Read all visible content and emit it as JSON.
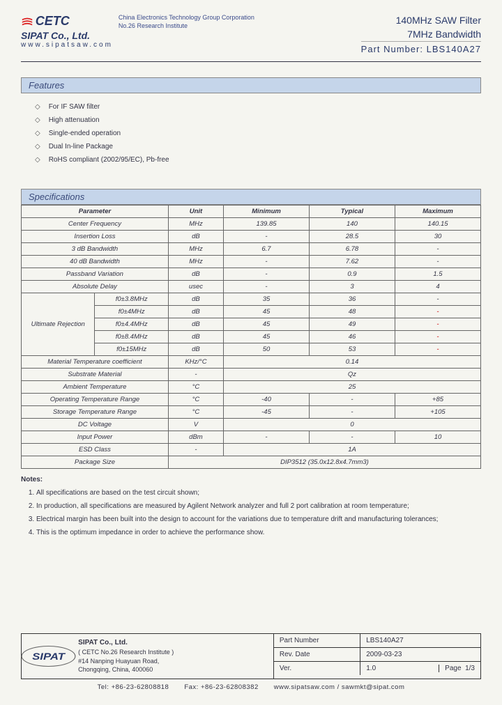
{
  "header": {
    "logo_text": "CETC",
    "subtitle_line1": "China Electronics Technology Group Corporation",
    "subtitle_line2": "No.26 Research Institute",
    "product_line1": "140MHz SAW Filter",
    "product_line2": "7MHz Bandwidth",
    "company": "SIPAT Co., Ltd.",
    "website": "www.sipatsaw.com",
    "partnum_label": "Part Number: ",
    "partnum": "LBS140A27"
  },
  "features": {
    "title": "Features",
    "items": [
      "For IF SAW filter",
      "High attenuation",
      "Single-ended operation",
      "Dual In-line Package",
      "RoHS compliant (2002/95/EC), Pb-free"
    ]
  },
  "specs": {
    "title": "Specifications",
    "columns": [
      "Parameter",
      "Unit",
      "Minimum",
      "Typical",
      "Maximum"
    ],
    "rows": [
      {
        "p": "Center Frequency",
        "u": "MHz",
        "min": "139.85",
        "typ": "140",
        "max": "140.15"
      },
      {
        "p": "Insertion Loss",
        "u": "dB",
        "min": "-",
        "typ": "28.5",
        "max": "30"
      },
      {
        "p": "3 dB Bandwidth",
        "u": "MHz",
        "min": "6.7",
        "typ": "6.78",
        "max": "-"
      },
      {
        "p": "40 dB Bandwidth",
        "u": "MHz",
        "min": "-",
        "typ": "7.62",
        "max": "-"
      },
      {
        "p": "Passband Variation",
        "u": "dB",
        "min": "-",
        "typ": "0.9",
        "max": "1.5"
      },
      {
        "p": "Absolute Delay",
        "u": "usec",
        "min": "-",
        "typ": "3",
        "max": "4"
      }
    ],
    "ultimate_label": "Ultimate Rejection",
    "ultimate_rows": [
      {
        "p": "f0±3.8MHz",
        "u": "dB",
        "min": "35",
        "typ": "36",
        "max": "-"
      },
      {
        "p": "f0±4MHz",
        "u": "dB",
        "min": "45",
        "typ": "48",
        "max": "-",
        "red": true
      },
      {
        "p": "f0±4.4MHz",
        "u": "dB",
        "min": "45",
        "typ": "49",
        "max": "-",
        "red": true
      },
      {
        "p": "f0±8.4MHz",
        "u": "dB",
        "min": "45",
        "typ": "46",
        "max": "-",
        "red": true
      },
      {
        "p": "f0±15MHz",
        "u": "dB",
        "min": "50",
        "typ": "53",
        "max": "-",
        "red": true
      }
    ],
    "bottom_rows": [
      {
        "p": "Material Temperature coefficient",
        "u": "KHz/°C",
        "span": "0.14"
      },
      {
        "p": "Substrate Material",
        "u": "-",
        "span": "Qz"
      },
      {
        "p": "Ambient Temperature",
        "u": "°C",
        "span": "25"
      },
      {
        "p": "Operating Temperature Range",
        "u": "°C",
        "min": "-40",
        "typ": "-",
        "max": "+85"
      },
      {
        "p": "Storage Temperature Range",
        "u": "°C",
        "min": "-45",
        "typ": "-",
        "max": "+105"
      },
      {
        "p": "DC Voltage",
        "u": "V",
        "span": "0"
      },
      {
        "p": "Input Power",
        "u": "dBm",
        "min": "-",
        "typ": "-",
        "max": "10"
      },
      {
        "p": "ESD Class",
        "u": "-",
        "span": "1A"
      },
      {
        "p": "Package Size",
        "full": "DIP3512   (35.0x12.8x4.7mm3)"
      }
    ]
  },
  "notes": {
    "title": "Notes:",
    "items": [
      "All specifications are based on the test circuit shown;",
      "In production, all specifications are measured by Agilent Network analyzer and full 2 port calibration at room temperature;",
      "Electrical margin has been built into the design to account for the variations due to temperature drift and manufacturing tolerances;",
      "This is the optimum impedance in order to achieve the performance show."
    ]
  },
  "footer": {
    "sipat": "SIPAT",
    "company": "SIPAT Co., Ltd.",
    "inst": "( CETC No.26 Research Institute )",
    "addr1": "#14 Nanping Huayuan Road,",
    "addr2": "Chongqing, China, 400060",
    "rows": [
      {
        "label": "Part Number",
        "value": "LBS140A27"
      },
      {
        "label": "Rev. Date",
        "value": "2009-03-23"
      },
      {
        "label": "Ver.",
        "value": "1.0",
        "page_label": "Page",
        "page": "1/3"
      }
    ],
    "tel_label": "Tel: ",
    "tel": "+86-23-62808818",
    "fax_label": "Fax: ",
    "fax": "+86-23-62808382",
    "web": "www.sipatsaw.com / sawmkt@sipat.com"
  },
  "colors": {
    "section_bg": "#c5d5ea",
    "text": "#333344",
    "brand": "#2a3a6a",
    "red": "#cc0000",
    "border": "#666666"
  }
}
